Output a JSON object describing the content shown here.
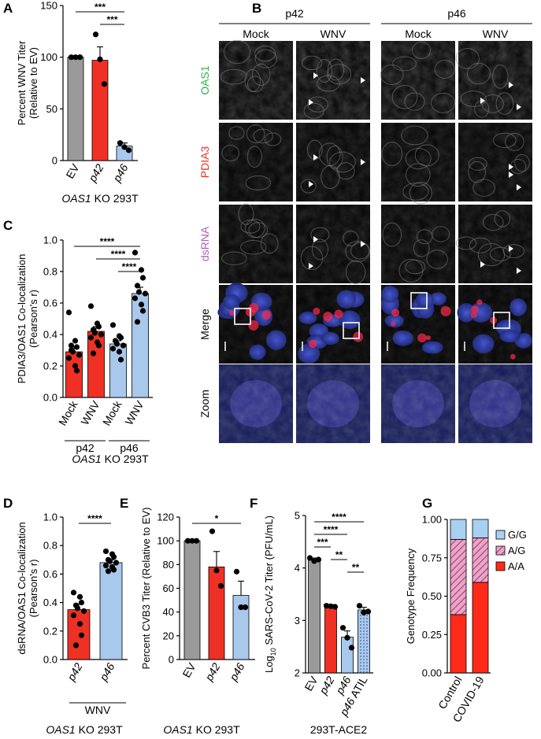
{
  "chart_data": [
    {
      "panel": "A",
      "type": "bar",
      "ylabel": [
        "Percent WNV Titer",
        "(Relative to EV)"
      ],
      "ylim": [
        0,
        150
      ],
      "yticks": [
        0,
        50,
        100,
        150
      ],
      "categories": [
        "EV",
        "p42",
        "p46"
      ],
      "xlabel_italic": "OAS1",
      "xlabel_rest": " KO 293T",
      "values": [
        100,
        97,
        14
      ],
      "errors": [
        0,
        13,
        3
      ],
      "colors": [
        "#9a9a9a",
        "#ee3124",
        "#a8c8ec"
      ],
      "points": [
        [
          100,
          100,
          100
        ],
        [
          122,
          98,
          74
        ],
        [
          17,
          13,
          10
        ]
      ],
      "significance": [
        {
          "from": 0,
          "to": 2,
          "label": "***"
        },
        {
          "from": 1,
          "to": 2,
          "label": "***"
        }
      ]
    },
    {
      "panel": "C",
      "type": "bar",
      "ylabel": [
        "PDIA3/OAS1 Co-localization",
        "(Pearson's r)"
      ],
      "ylim": [
        0,
        1.0
      ],
      "yticks": [
        "0.0",
        "0.2",
        "0.4",
        "0.6",
        "0.8",
        "1.0"
      ],
      "categories": [
        "Mock",
        "WNV",
        "Mock",
        "WNV"
      ],
      "groups": [
        "p42",
        "p46"
      ],
      "xlabel_italic": "OAS1",
      "xlabel_rest": " KO 293T",
      "values": [
        0.29,
        0.42,
        0.34,
        0.66
      ],
      "errors": [
        0.03,
        0.03,
        0.02,
        0.04
      ],
      "colors": [
        "#ee3124",
        "#ee3124",
        "#a8c8ec",
        "#a8c8ec"
      ],
      "points": [
        [
          0.54,
          0.36,
          0.32,
          0.3,
          0.29,
          0.27,
          0.25,
          0.2,
          0.17,
          0.33
        ],
        [
          0.58,
          0.47,
          0.45,
          0.43,
          0.41,
          0.4,
          0.38,
          0.35,
          0.33,
          0.28
        ],
        [
          0.46,
          0.39,
          0.38,
          0.36,
          0.34,
          0.33,
          0.31,
          0.29,
          0.24
        ],
        [
          0.92,
          0.81,
          0.76,
          0.71,
          0.67,
          0.66,
          0.63,
          0.59,
          0.55,
          0.48
        ]
      ],
      "significance": [
        {
          "from": 0,
          "to": 3,
          "label": "****"
        },
        {
          "from": 1,
          "to": 3,
          "label": "****"
        },
        {
          "from": 2,
          "to": 3,
          "label": "****"
        }
      ]
    },
    {
      "panel": "D",
      "type": "bar",
      "ylabel": [
        "dsRNA/OAS1 Co-localization",
        "(Pearson's r)"
      ],
      "ylim": [
        0,
        1.0
      ],
      "yticks": [
        "0.0",
        "0.2",
        "0.4",
        "0.6",
        "0.8",
        "1.0"
      ],
      "categories": [
        "p42",
        "p46"
      ],
      "group_label": "WNV",
      "xlabel_italic": "OAS1",
      "xlabel_rest": " KO 293T",
      "values": [
        0.35,
        0.68
      ],
      "errors": [
        0.04,
        0.02
      ],
      "colors": [
        "#ee3124",
        "#a8c8ec"
      ],
      "points": [
        [
          0.47,
          0.44,
          0.4,
          0.38,
          0.36,
          0.34,
          0.31,
          0.25,
          0.17,
          0.1
        ],
        [
          0.76,
          0.74,
          0.72,
          0.7,
          0.69,
          0.68,
          0.66,
          0.65,
          0.63,
          0.62
        ]
      ],
      "significance": [
        {
          "from": 0,
          "to": 1,
          "label": "****"
        }
      ]
    },
    {
      "panel": "E",
      "type": "bar",
      "ylabel": [
        "Percent CVB3 Titer (Relative to EV)"
      ],
      "ylim": [
        0,
        120
      ],
      "yticks": [
        0,
        20,
        40,
        60,
        80,
        100,
        120
      ],
      "categories": [
        "EV",
        "p42",
        "p46"
      ],
      "xlabel_italic": "OAS1",
      "xlabel_rest": " KO 293T",
      "values": [
        100,
        78,
        54
      ],
      "errors": [
        0,
        13,
        12
      ],
      "colors": [
        "#9a9a9a",
        "#ee3124",
        "#a8c8ec"
      ],
      "points": [
        [
          100,
          100,
          100
        ],
        [
          108,
          75,
          62
        ],
        [
          74,
          44,
          44
        ]
      ],
      "significance": [
        {
          "from": 0,
          "to": 2,
          "label": "*"
        }
      ]
    },
    {
      "panel": "F",
      "type": "bar",
      "ylabel": [
        "Log",
        "10",
        " SARS-CoV-2 Titer (PFU/mL)"
      ],
      "ylim": [
        2,
        5
      ],
      "yticks": [
        2,
        3,
        4,
        5
      ],
      "categories": [
        "EV",
        "p42",
        "p46",
        "p46 ATIL"
      ],
      "xlabel": "293T-ACE2",
      "values": [
        4.15,
        3.27,
        2.68,
        3.2
      ],
      "errors": [
        0.04,
        0.03,
        0.12,
        0.05
      ],
      "colors": [
        "#9a9a9a",
        "#ee3124",
        "#a8c8ec",
        "#a8c8ec"
      ],
      "patterned": [
        false,
        false,
        false,
        true
      ],
      "points": [
        [
          4.19,
          4.13,
          4.16
        ],
        [
          3.28,
          3.27,
          3.26
        ],
        [
          2.86,
          2.67,
          2.48
        ],
        [
          3.28,
          3.15,
          3.17
        ]
      ],
      "significance": [
        {
          "from": 0,
          "to": 3,
          "label": "****"
        },
        {
          "from": 0,
          "to": 2,
          "label": "****"
        },
        {
          "from": 0,
          "to": 1,
          "label": "***"
        },
        {
          "from": 1,
          "to": 2,
          "label": "**"
        },
        {
          "from": 2,
          "to": 3,
          "label": "**"
        }
      ]
    },
    {
      "panel": "G",
      "type": "bar",
      "stacked": true,
      "ylabel": [
        "Genotype Frequency"
      ],
      "ylim": [
        0,
        1.0
      ],
      "yticks": [
        "0.00",
        "0.25",
        "0.50",
        "0.75",
        "1.00"
      ],
      "categories": [
        "Control",
        "COVID-19"
      ],
      "series": [
        {
          "name": "A/A",
          "values": [
            0.38,
            0.59
          ],
          "color": "#ff2a1a"
        },
        {
          "name": "A/G",
          "values": [
            0.49,
            0.29
          ],
          "color": "#e8a6c4"
        },
        {
          "name": "G/G",
          "values": [
            0.13,
            0.12
          ],
          "color": "#a8d0f0"
        }
      ],
      "legend": "top-right"
    }
  ],
  "panelB": {
    "label": "B",
    "groups": [
      {
        "name": "p42",
        "conditions": [
          "Mock",
          "WNV"
        ]
      },
      {
        "name": "p46",
        "conditions": [
          "Mock",
          "WNV"
        ]
      }
    ],
    "rows": [
      {
        "label": "OAS1",
        "color": "#2db34a"
      },
      {
        "label": "PDIA3",
        "color": "#ee3124"
      },
      {
        "label": "dsRNA",
        "color": "#b060b8"
      },
      {
        "label": "Merge",
        "color": "#000000"
      },
      {
        "label": "Zoom",
        "color": "#000000"
      }
    ]
  },
  "panel_labels": [
    "A",
    "C",
    "D",
    "E",
    "F",
    "G"
  ]
}
